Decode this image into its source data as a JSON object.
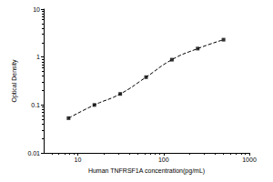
{
  "chart_data": {
    "type": "scatter",
    "x_label": "Human TNFRSF1A concentration(pg/mL)",
    "y_label": "Optical Density",
    "log": true,
    "grid": false,
    "xlim": [
      4,
      1000
    ],
    "xticks": [
      10,
      100,
      1000
    ],
    "ylim": [
      0.01,
      10
    ],
    "yticks": [
      0.01,
      0.1,
      1,
      10
    ],
    "x": [
      7.8,
      15.6,
      31.25,
      62.5,
      125,
      250,
      500
    ],
    "series": [
      {
        "type": "scatter",
        "marker": "square",
        "color": "#000000",
        "values": [
          0.053,
          0.1,
          0.17,
          0.38,
          0.88,
          1.5,
          2.3
        ]
      },
      {
        "type": "line",
        "line_style": "dashed",
        "color": "#000000",
        "values": [
          0.053,
          0.1,
          0.17,
          0.38,
          0.88,
          1.5,
          2.3
        ]
      }
    ]
  }
}
